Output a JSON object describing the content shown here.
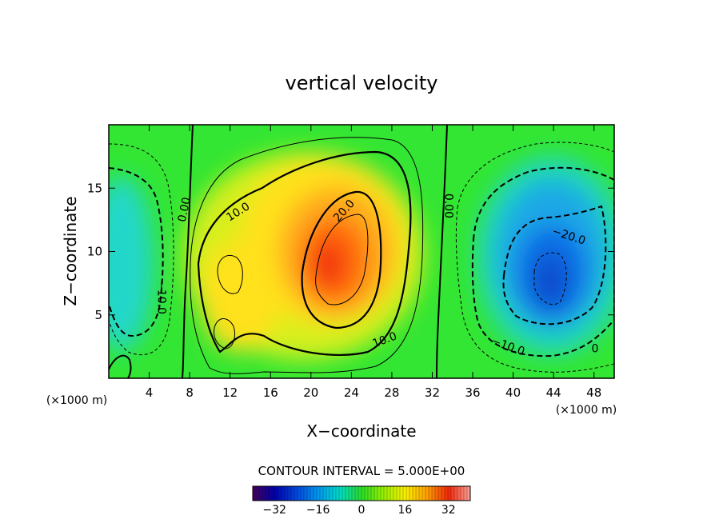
{
  "chart_data": {
    "type": "heatmap",
    "subtype": "filled-contour",
    "title": "vertical velocity",
    "xlabel": "X−coordinate",
    "ylabel": "Z−coordinate",
    "x_unit_left": "(×1000 m)",
    "x_unit_right": "(×1000 m)",
    "xlim": [
      0,
      50
    ],
    "ylim": [
      0,
      20
    ],
    "xticks": [
      4,
      8,
      12,
      16,
      20,
      24,
      28,
      32,
      36,
      40,
      44,
      48
    ],
    "xtick_labels": [
      "4",
      "8",
      "12",
      "16",
      "20",
      "24",
      "28",
      "32",
      "36",
      "40",
      "44",
      "48"
    ],
    "yticks": [
      5,
      10,
      15
    ],
    "ytick_labels": [
      "5",
      "10",
      "15"
    ],
    "contour_interval_text": "CONTOUR INTERVAL = 5.000E+00",
    "contour_interval": 5,
    "contour_labels": [
      {
        "text": "0.00",
        "x": 7.5,
        "y": 13.3,
        "angle": -78
      },
      {
        "text": "0.00",
        "x": 33.6,
        "y": 13.6,
        "angle": 90
      },
      {
        "text": "10.0",
        "x": 12.8,
        "y": 13.1,
        "angle": -32
      },
      {
        "text": "20.0",
        "x": 23.3,
        "y": 13.2,
        "angle": -48
      },
      {
        "text": "10.0",
        "x": 27.3,
        "y": 3.0,
        "angle": -20
      },
      {
        "text": "−20.0",
        "x": 45.5,
        "y": 11.2,
        "angle": 18
      },
      {
        "text": "−10.0",
        "x": 39.5,
        "y": 2.5,
        "angle": 20
      },
      {
        "text": "−10.0",
        "x": 5.2,
        "y": 6.4,
        "angle": 90
      },
      {
        "text": "0",
        "x": 48.1,
        "y": 2.3,
        "angle": 0
      }
    ],
    "field_features": [
      {
        "name": "updraft-max",
        "x": 22.5,
        "z": 9.5,
        "value": 30
      },
      {
        "name": "updraft-secondary",
        "x": 12.5,
        "z": 7.5,
        "value": 18
      },
      {
        "name": "downdraft-min",
        "x": 44.0,
        "z": 8.5,
        "value": -28
      },
      {
        "name": "downdraft-left",
        "x": 1.5,
        "z": 11.0,
        "value": -12
      }
    ],
    "colorbar": {
      "min": -40,
      "max": 40,
      "ticks": [
        -32,
        -16,
        0,
        16,
        32
      ],
      "tick_labels": [
        "−32",
        "−16",
        "0",
        "16",
        "32"
      ]
    },
    "grid": false,
    "legend": "none"
  }
}
